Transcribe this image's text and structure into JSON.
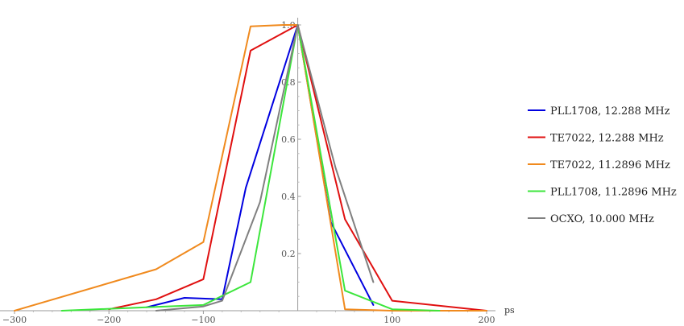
{
  "chart_data": {
    "type": "line",
    "xlabel": "ps",
    "ylabel": "",
    "xlim": [
      -300,
      200
    ],
    "ylim": [
      0,
      1.0
    ],
    "grid": false,
    "legend_position": "right",
    "x_ticks": [
      -300,
      -200,
      -100,
      100,
      200
    ],
    "x_tick_labels": [
      "−300",
      "−200",
      "−100",
      "100",
      "200"
    ],
    "y_ticks": [
      0.2,
      0.4,
      0.6,
      0.8,
      1.0
    ],
    "y_tick_labels": [
      "0.2",
      "0.4",
      "0.6",
      "0.8",
      "1.0"
    ],
    "series": [
      {
        "name": "PLL1708, 12.288 MHz",
        "color": "#0000e0",
        "points": [
          [
            -160,
            0.012
          ],
          [
            -120,
            0.045
          ],
          [
            -80,
            0.04
          ],
          [
            -55,
            0.43
          ],
          [
            0,
            1.0
          ],
          [
            35,
            0.31
          ],
          [
            80,
            0.02
          ]
        ]
      },
      {
        "name": "TE7022, 12.288 MHz",
        "color": "#e01010",
        "points": [
          [
            -200,
            0.005
          ],
          [
            -150,
            0.04
          ],
          [
            -100,
            0.11
          ],
          [
            -50,
            0.91
          ],
          [
            0,
            1.0
          ],
          [
            50,
            0.32
          ],
          [
            100,
            0.035
          ],
          [
            200,
            0.0
          ]
        ]
      },
      {
        "name": "TE7022, 11.2896 MHz",
        "color": "#f08a1e",
        "points": [
          [
            -300,
            0.0
          ],
          [
            -150,
            0.145
          ],
          [
            -100,
            0.24
          ],
          [
            -50,
            0.995
          ],
          [
            -15,
            1.0
          ],
          [
            0,
            1.0
          ],
          [
            50,
            0.005
          ],
          [
            100,
            0.0
          ],
          [
            200,
            0.0
          ]
        ]
      },
      {
        "name": "PLL1708, 11.2896 MHz",
        "color": "#3ce63c",
        "points": [
          [
            -250,
            0.0
          ],
          [
            -100,
            0.02
          ],
          [
            -50,
            0.1
          ],
          [
            0,
            1.0
          ],
          [
            50,
            0.07
          ],
          [
            100,
            0.005
          ],
          [
            150,
            0.0
          ]
        ]
      },
      {
        "name": "OCXO, 10.000 MHz",
        "color": "#808080",
        "points": [
          [
            -150,
            0.0
          ],
          [
            -100,
            0.015
          ],
          [
            -80,
            0.035
          ],
          [
            -40,
            0.38
          ],
          [
            0,
            1.0
          ],
          [
            40,
            0.5
          ],
          [
            80,
            0.1
          ]
        ]
      }
    ]
  }
}
